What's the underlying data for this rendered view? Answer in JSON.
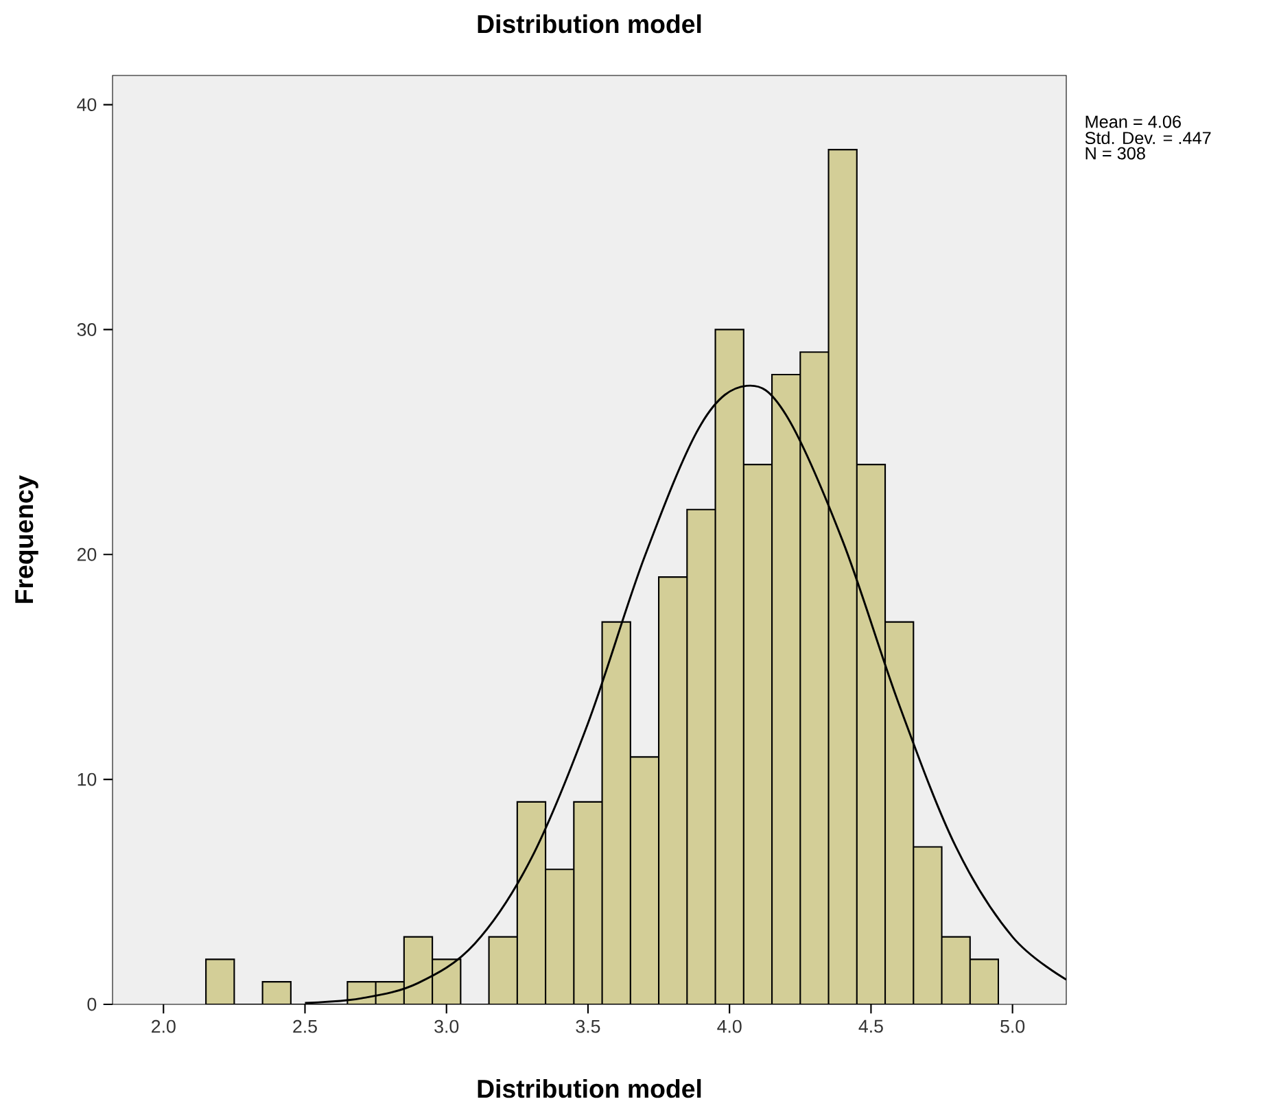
{
  "chart_data": {
    "type": "histogram",
    "title": "Distribution model",
    "xlabel": "Distribution model",
    "ylabel": "Frequency",
    "bins": [
      2.15,
      2.25,
      2.35,
      2.45,
      2.55,
      2.65,
      2.75,
      2.85,
      2.95,
      3.05,
      3.15,
      3.25,
      3.35,
      3.45,
      3.55,
      3.65,
      3.75,
      3.85,
      3.95,
      4.05,
      4.15,
      4.25,
      4.35,
      4.45,
      4.55,
      4.65,
      4.75,
      4.85,
      4.95
    ],
    "values": [
      2,
      0,
      1,
      0,
      0,
      1,
      1,
      3,
      2,
      0,
      3,
      9,
      6,
      9,
      17,
      11,
      19,
      22,
      30,
      24,
      28,
      29,
      38,
      24,
      17,
      7,
      3,
      2
    ],
    "color": "#d3ce97",
    "series": [
      {
        "type": "line",
        "color": "#000000",
        "x": [
          2.5,
          2.7,
          2.9,
          3.1,
          3.3,
          3.5,
          3.7,
          3.9,
          4.06,
          4.2,
          4.4,
          4.6,
          4.8,
          5.0,
          5.19
        ],
        "values": [
          0.06,
          0.27,
          0.95,
          2.7,
          6.5,
          12.5,
          19.9,
          25.8,
          27.5,
          26.2,
          20.6,
          13.3,
          7.0,
          3.0,
          1.1
        ]
      }
    ],
    "xlim": [
      1.82,
      5.19
    ],
    "ylim": [
      0,
      41.3
    ],
    "xticks": [
      {
        "value": 2.0,
        "label": "2.0"
      },
      {
        "value": 2.5,
        "label": "2.5"
      },
      {
        "value": 3.0,
        "label": "3.0"
      },
      {
        "value": 3.5,
        "label": "3.5"
      },
      {
        "value": 4.0,
        "label": "4.0"
      },
      {
        "value": 4.5,
        "label": "4.5"
      },
      {
        "value": 5.0,
        "label": "5.0"
      }
    ],
    "yticks": [
      0,
      10,
      20,
      30,
      40
    ],
    "annotations": [
      "Mean = 4.06",
      "Std. Dev. = .447",
      "N = 308"
    ]
  }
}
